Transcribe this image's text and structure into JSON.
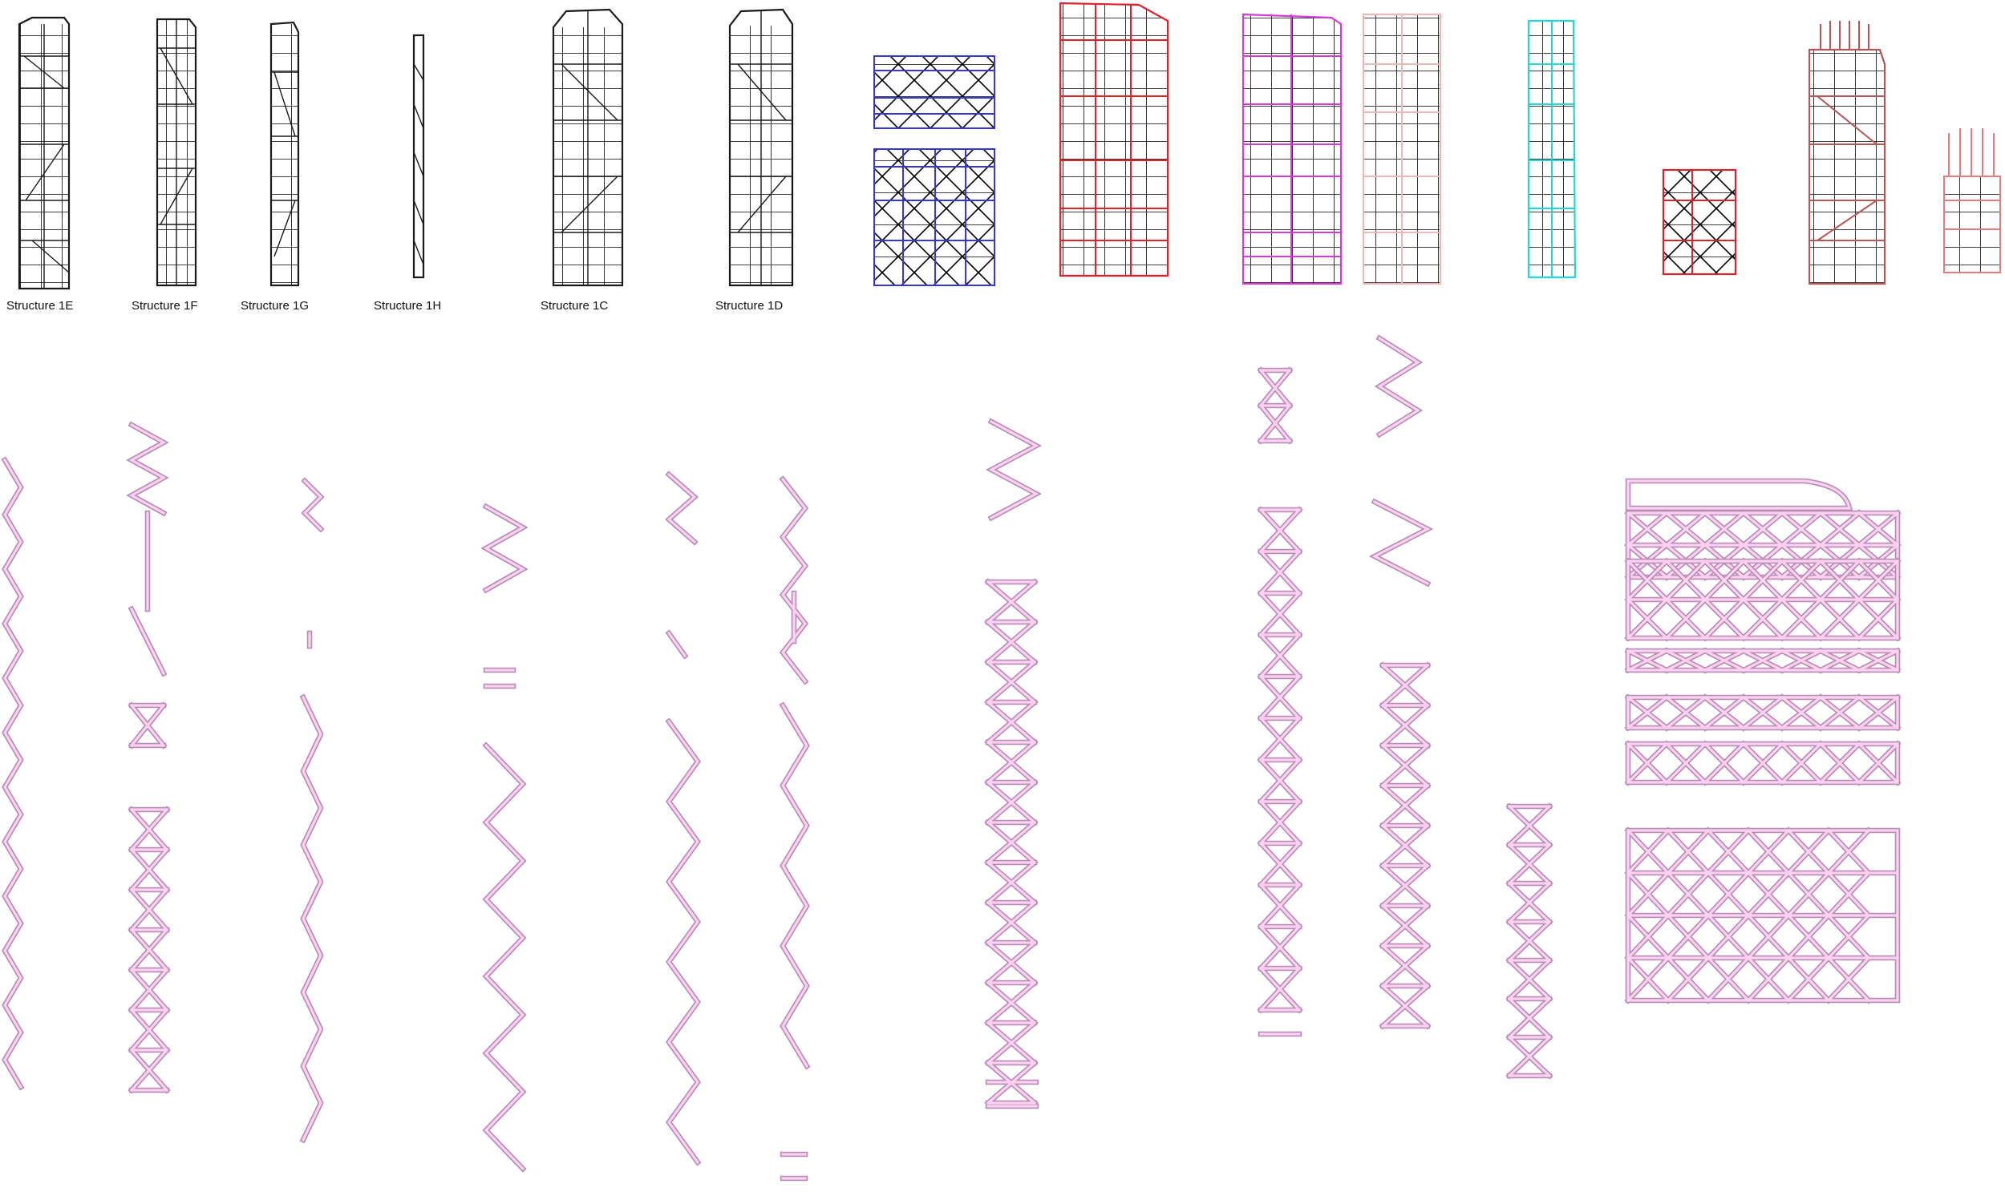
{
  "structures": [
    {
      "id": "1E",
      "label": "Structure 1E"
    },
    {
      "id": "1F",
      "label": "Structure 1F"
    },
    {
      "id": "1G",
      "label": "Structure 1G"
    },
    {
      "id": "1H",
      "label": "Structure 1H"
    },
    {
      "id": "1C",
      "label": "Structure 1C"
    },
    {
      "id": "1D",
      "label": "Structure 1D"
    }
  ],
  "colors": {
    "black": "#1a1a1a",
    "blue": "#3636d4",
    "red": "#e0212b",
    "magenta": "#d43ad4",
    "pink_light": "#ebb8b8",
    "cyan": "#24d7d7",
    "crimson": "#d2262e",
    "rosewood": "#b45757",
    "salmon": "#e07c7c",
    "member_outline": "#b48cb8",
    "member_fill": "#ffd1ee"
  }
}
